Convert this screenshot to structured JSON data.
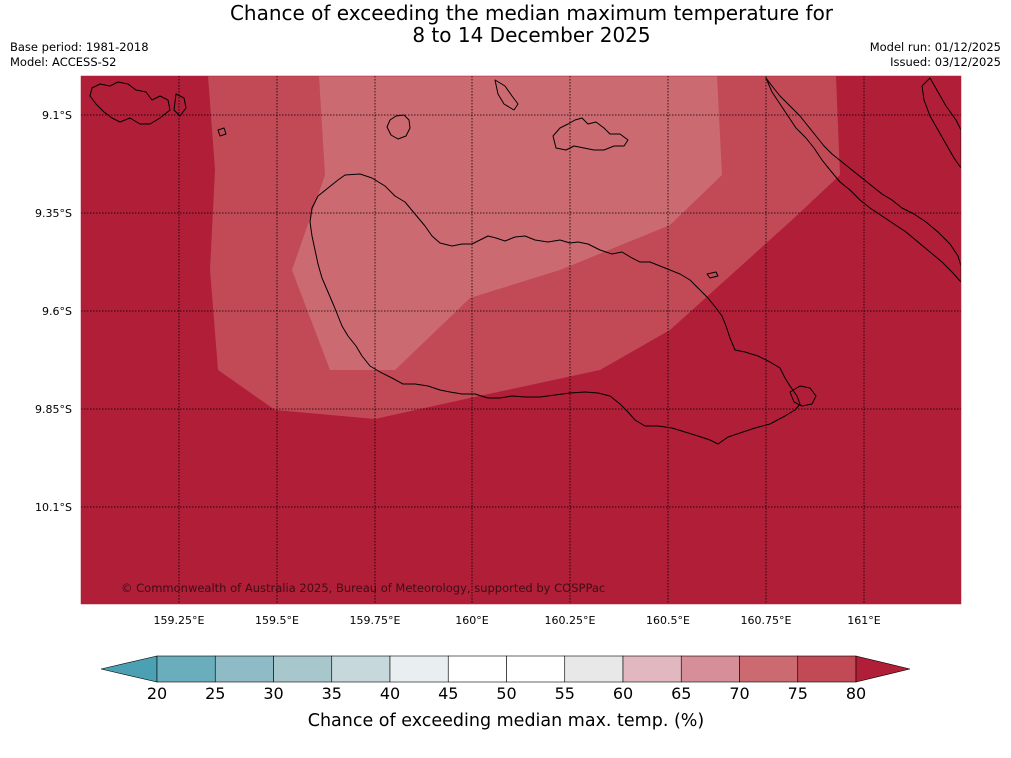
{
  "title": {
    "line1": "Chance of exceeding the median maximum temperature for",
    "line2": "8 to 14 December 2025"
  },
  "meta": {
    "base_period": "Base period: 1981-2018",
    "model": "Model: ACCESS-S2",
    "model_run": "Model run: 01/12/2025",
    "issued": "Issued: 03/12/2025"
  },
  "map": {
    "lat_ticks": [
      "9.1°S",
      "9.35°S",
      "9.6°S",
      "9.85°S",
      "10.1°S"
    ],
    "lon_ticks": [
      "159.25°E",
      "159.5°E",
      "159.75°E",
      "160°E",
      "160.25°E",
      "160.5°E",
      "160.75°E",
      "161°E"
    ],
    "copyright": "© Commonwealth of Australia 2025, Bureau of Meteorology, supported by COSPPac",
    "colors": {
      "band_80_plus": "#b01e38",
      "band_75_80": "#c14a56",
      "band_70_75": "#cc6a72",
      "coastline": "#000000"
    }
  },
  "colorbar": {
    "ticks": [
      "20",
      "25",
      "30",
      "35",
      "40",
      "45",
      "50",
      "55",
      "60",
      "65",
      "70",
      "75",
      "80"
    ],
    "label": "Chance of exceeding median max. temp. (%)",
    "colors": [
      "#4ba1b3",
      "#6aaebd",
      "#8ebbc6",
      "#a8c7cd",
      "#c6d8dc",
      "#e9eff1",
      "#ffffff",
      "#ffffff",
      "#e8e8e8",
      "#e2b8c0",
      "#d68f98",
      "#cc6a72",
      "#c14a56",
      "#b01e38"
    ]
  }
}
